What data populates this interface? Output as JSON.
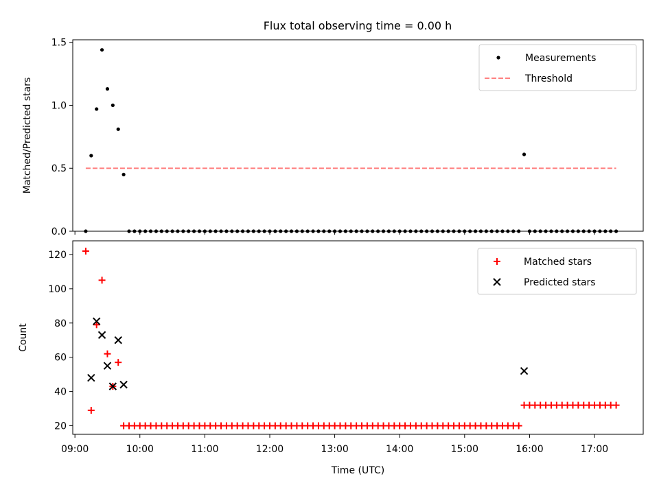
{
  "figure": {
    "title": "Flux total observing time = 0.00 h"
  },
  "chart_data": [
    {
      "type": "scatter",
      "xlabel": "",
      "ylabel": "Matched/Predicted stars",
      "xlim": [
        "08:58",
        "17:45"
      ],
      "ylim": [
        0,
        1.52
      ],
      "yticks": [
        0.0,
        0.5,
        1.0,
        1.5
      ],
      "yticklabels": [
        "0.0",
        "0.5",
        "1.0",
        "1.5"
      ],
      "legend": {
        "position": "upper right",
        "entries": [
          "Measurements",
          "Threshold"
        ]
      },
      "colors": {
        "measurements": "#000000",
        "threshold": "#ff8080"
      },
      "series": [
        {
          "name": "Measurements",
          "marker": "dot",
          "points": [
            [
              "09:10",
              0.0
            ],
            [
              "09:15",
              0.6
            ],
            [
              "09:20",
              0.97
            ],
            [
              "09:25",
              1.44
            ],
            [
              "09:30",
              1.13
            ],
            [
              "09:35",
              1.0
            ],
            [
              "09:40",
              0.81
            ],
            [
              "09:45",
              0.45
            ],
            [
              "09:50",
              0.0
            ],
            [
              "09:55",
              0.0
            ],
            [
              "10:00",
              0.0
            ],
            [
              "10:05",
              0.0
            ],
            [
              "10:10",
              0.0
            ],
            [
              "10:15",
              0.0
            ],
            [
              "10:20",
              0.0
            ],
            [
              "10:25",
              0.0
            ],
            [
              "10:30",
              0.0
            ],
            [
              "10:35",
              0.0
            ],
            [
              "10:40",
              0.0
            ],
            [
              "10:45",
              0.0
            ],
            [
              "10:50",
              0.0
            ],
            [
              "10:55",
              0.0
            ],
            [
              "11:00",
              0.0
            ],
            [
              "11:05",
              0.0
            ],
            [
              "11:10",
              0.0
            ],
            [
              "11:15",
              0.0
            ],
            [
              "11:20",
              0.0
            ],
            [
              "11:25",
              0.0
            ],
            [
              "11:30",
              0.0
            ],
            [
              "11:35",
              0.0
            ],
            [
              "11:40",
              0.0
            ],
            [
              "11:45",
              0.0
            ],
            [
              "11:50",
              0.0
            ],
            [
              "11:55",
              0.0
            ],
            [
              "12:00",
              0.0
            ],
            [
              "12:05",
              0.0
            ],
            [
              "12:10",
              0.0
            ],
            [
              "12:15",
              0.0
            ],
            [
              "12:20",
              0.0
            ],
            [
              "12:25",
              0.0
            ],
            [
              "12:30",
              0.0
            ],
            [
              "12:35",
              0.0
            ],
            [
              "12:40",
              0.0
            ],
            [
              "12:45",
              0.0
            ],
            [
              "12:50",
              0.0
            ],
            [
              "12:55",
              0.0
            ],
            [
              "13:00",
              0.0
            ],
            [
              "13:05",
              0.0
            ],
            [
              "13:10",
              0.0
            ],
            [
              "13:15",
              0.0
            ],
            [
              "13:20",
              0.0
            ],
            [
              "13:25",
              0.0
            ],
            [
              "13:30",
              0.0
            ],
            [
              "13:35",
              0.0
            ],
            [
              "13:40",
              0.0
            ],
            [
              "13:45",
              0.0
            ],
            [
              "13:50",
              0.0
            ],
            [
              "13:55",
              0.0
            ],
            [
              "14:00",
              0.0
            ],
            [
              "14:05",
              0.0
            ],
            [
              "14:10",
              0.0
            ],
            [
              "14:15",
              0.0
            ],
            [
              "14:20",
              0.0
            ],
            [
              "14:25",
              0.0
            ],
            [
              "14:30",
              0.0
            ],
            [
              "14:35",
              0.0
            ],
            [
              "14:40",
              0.0
            ],
            [
              "14:45",
              0.0
            ],
            [
              "14:50",
              0.0
            ],
            [
              "14:55",
              0.0
            ],
            [
              "15:00",
              0.0
            ],
            [
              "15:05",
              0.0
            ],
            [
              "15:10",
              0.0
            ],
            [
              "15:15",
              0.0
            ],
            [
              "15:20",
              0.0
            ],
            [
              "15:25",
              0.0
            ],
            [
              "15:30",
              0.0
            ],
            [
              "15:35",
              0.0
            ],
            [
              "15:40",
              0.0
            ],
            [
              "15:45",
              0.0
            ],
            [
              "15:50",
              0.0
            ],
            [
              "15:55",
              0.61
            ],
            [
              "16:00",
              0.0
            ],
            [
              "16:05",
              0.0
            ],
            [
              "16:10",
              0.0
            ],
            [
              "16:15",
              0.0
            ],
            [
              "16:20",
              0.0
            ],
            [
              "16:25",
              0.0
            ],
            [
              "16:30",
              0.0
            ],
            [
              "16:35",
              0.0
            ],
            [
              "16:40",
              0.0
            ],
            [
              "16:45",
              0.0
            ],
            [
              "16:50",
              0.0
            ],
            [
              "16:55",
              0.0
            ],
            [
              "17:00",
              0.0
            ],
            [
              "17:05",
              0.0
            ],
            [
              "17:10",
              0.0
            ],
            [
              "17:15",
              0.0
            ],
            [
              "17:20",
              0.0
            ]
          ]
        },
        {
          "name": "Threshold",
          "style": "dashed",
          "points": [
            [
              "09:10",
              0.5
            ],
            [
              "17:20",
              0.5
            ]
          ]
        }
      ]
    },
    {
      "type": "scatter",
      "xlabel": "Time (UTC)",
      "ylabel": "Count",
      "xlim": [
        "08:58",
        "17:45"
      ],
      "ylim": [
        15,
        128
      ],
      "yticks": [
        20,
        40,
        60,
        80,
        100,
        120
      ],
      "yticklabels": [
        "20",
        "40",
        "60",
        "80",
        "100",
        "120"
      ],
      "xticks": [
        "09:00",
        "10:00",
        "11:00",
        "12:00",
        "13:00",
        "14:00",
        "15:00",
        "16:00",
        "17:00"
      ],
      "xticklabels": [
        "09:00",
        "10:00",
        "11:00",
        "12:00",
        "13:00",
        "14:00",
        "15:00",
        "16:00",
        "17:00"
      ],
      "legend": {
        "position": "upper right",
        "entries": [
          "Matched stars",
          "Predicted stars"
        ]
      },
      "colors": {
        "matched": "#ff0000",
        "predicted": "#000000"
      },
      "series": [
        {
          "name": "Matched stars",
          "marker": "plus",
          "points": [
            [
              "09:10",
              122
            ],
            [
              "09:15",
              29
            ],
            [
              "09:20",
              79
            ],
            [
              "09:25",
              105
            ],
            [
              "09:30",
              62
            ],
            [
              "09:35",
              43
            ],
            [
              "09:40",
              57
            ],
            [
              "09:45",
              20
            ],
            [
              "09:50",
              20
            ],
            [
              "09:55",
              20
            ],
            [
              "10:00",
              20
            ],
            [
              "10:05",
              20
            ],
            [
              "10:10",
              20
            ],
            [
              "10:15",
              20
            ],
            [
              "10:20",
              20
            ],
            [
              "10:25",
              20
            ],
            [
              "10:30",
              20
            ],
            [
              "10:35",
              20
            ],
            [
              "10:40",
              20
            ],
            [
              "10:45",
              20
            ],
            [
              "10:50",
              20
            ],
            [
              "10:55",
              20
            ],
            [
              "11:00",
              20
            ],
            [
              "11:05",
              20
            ],
            [
              "11:10",
              20
            ],
            [
              "11:15",
              20
            ],
            [
              "11:20",
              20
            ],
            [
              "11:25",
              20
            ],
            [
              "11:30",
              20
            ],
            [
              "11:35",
              20
            ],
            [
              "11:40",
              20
            ],
            [
              "11:45",
              20
            ],
            [
              "11:50",
              20
            ],
            [
              "11:55",
              20
            ],
            [
              "12:00",
              20
            ],
            [
              "12:05",
              20
            ],
            [
              "12:10",
              20
            ],
            [
              "12:15",
              20
            ],
            [
              "12:20",
              20
            ],
            [
              "12:25",
              20
            ],
            [
              "12:30",
              20
            ],
            [
              "12:35",
              20
            ],
            [
              "12:40",
              20
            ],
            [
              "12:45",
              20
            ],
            [
              "12:50",
              20
            ],
            [
              "12:55",
              20
            ],
            [
              "13:00",
              20
            ],
            [
              "13:05",
              20
            ],
            [
              "13:10",
              20
            ],
            [
              "13:15",
              20
            ],
            [
              "13:20",
              20
            ],
            [
              "13:25",
              20
            ],
            [
              "13:30",
              20
            ],
            [
              "13:35",
              20
            ],
            [
              "13:40",
              20
            ],
            [
              "13:45",
              20
            ],
            [
              "13:50",
              20
            ],
            [
              "13:55",
              20
            ],
            [
              "14:00",
              20
            ],
            [
              "14:05",
              20
            ],
            [
              "14:10",
              20
            ],
            [
              "14:15",
              20
            ],
            [
              "14:20",
              20
            ],
            [
              "14:25",
              20
            ],
            [
              "14:30",
              20
            ],
            [
              "14:35",
              20
            ],
            [
              "14:40",
              20
            ],
            [
              "14:45",
              20
            ],
            [
              "14:50",
              20
            ],
            [
              "14:55",
              20
            ],
            [
              "15:00",
              20
            ],
            [
              "15:05",
              20
            ],
            [
              "15:10",
              20
            ],
            [
              "15:15",
              20
            ],
            [
              "15:20",
              20
            ],
            [
              "15:25",
              20
            ],
            [
              "15:30",
              20
            ],
            [
              "15:35",
              20
            ],
            [
              "15:40",
              20
            ],
            [
              "15:45",
              20
            ],
            [
              "15:50",
              20
            ],
            [
              "15:55",
              32
            ],
            [
              "16:00",
              32
            ],
            [
              "16:05",
              32
            ],
            [
              "16:10",
              32
            ],
            [
              "16:15",
              32
            ],
            [
              "16:20",
              32
            ],
            [
              "16:25",
              32
            ],
            [
              "16:30",
              32
            ],
            [
              "16:35",
              32
            ],
            [
              "16:40",
              32
            ],
            [
              "16:45",
              32
            ],
            [
              "16:50",
              32
            ],
            [
              "16:55",
              32
            ],
            [
              "17:00",
              32
            ],
            [
              "17:05",
              32
            ],
            [
              "17:10",
              32
            ],
            [
              "17:15",
              32
            ],
            [
              "17:20",
              32
            ]
          ]
        },
        {
          "name": "Predicted stars",
          "marker": "x",
          "points": [
            [
              "09:15",
              48
            ],
            [
              "09:20",
              81
            ],
            [
              "09:25",
              73
            ],
            [
              "09:30",
              55
            ],
            [
              "09:35",
              43
            ],
            [
              "09:40",
              70
            ],
            [
              "09:45",
              44
            ],
            [
              "15:55",
              52
            ]
          ]
        }
      ]
    }
  ]
}
